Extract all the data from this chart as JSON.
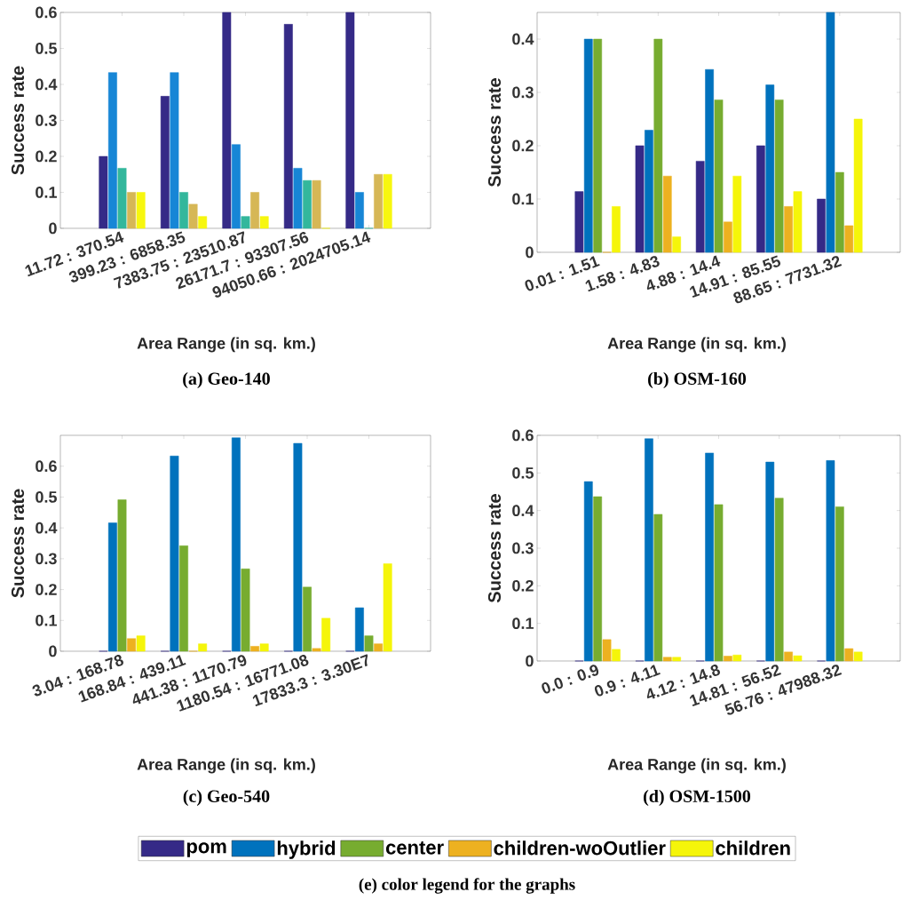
{
  "chart_data": [
    {
      "type": "bar",
      "title": "(a) Geo-140",
      "xlabel": "Area Range (in sq. km.)",
      "ylabel": "Success rate",
      "categories": [
        "11.72 : 370.54",
        "399.23 : 6858.35",
        "7383.75 : 23510.87",
        "26171.7 : 93307.56",
        "94050.66 : 2024705.14"
      ],
      "ylim": [
        0,
        0.6
      ],
      "yticks": [
        0,
        0.1,
        0.2,
        0.3,
        0.4,
        0.5,
        0.6
      ],
      "series": [
        {
          "color": "#352a87",
          "values": [
            0.2,
            0.367,
            0.6,
            0.567,
            0.6
          ]
        },
        {
          "color": "#1786d6",
          "values": [
            0.433,
            0.433,
            0.233,
            0.167,
            0.1
          ]
        },
        {
          "color": "#33b79c",
          "values": [
            0.167,
            0.1,
            0.033,
            0.133,
            0
          ]
        },
        {
          "color": "#d6b756",
          "values": [
            0.1,
            0.067,
            0.1,
            0.133,
            0.15
          ]
        },
        {
          "color": "#f7f70f",
          "values": [
            0.1,
            0.033,
            0.033,
            0,
            0.15
          ]
        }
      ]
    },
    {
      "type": "bar",
      "title": "(b) OSM-160",
      "xlabel": "Area Range (in sq. km.)",
      "ylabel": "Success rate",
      "categories": [
        "0.01 : 1.51",
        "1.58 : 4.83",
        "4.88 : 14.4",
        "14.91 : 85.55",
        "88.65 : 7731.32"
      ],
      "ylim": [
        0,
        0.45
      ],
      "yticks": [
        0,
        0.1,
        0.2,
        0.3,
        0.4
      ],
      "series": [
        {
          "color": "#352a87",
          "values": [
            0.114,
            0.2,
            0.171,
            0.2,
            0.1
          ]
        },
        {
          "color": "#0072bd",
          "values": [
            0.4,
            0.229,
            0.343,
            0.314,
            0.45
          ]
        },
        {
          "color": "#77ac30",
          "values": [
            0.4,
            0.4,
            0.286,
            0.286,
            0.15
          ]
        },
        {
          "color": "#edb120",
          "values": [
            0,
            0.143,
            0.057,
            0.086,
            0.05
          ]
        },
        {
          "color": "#f5f50a",
          "values": [
            0.086,
            0.029,
            0.143,
            0.114,
            0.25
          ]
        }
      ]
    },
    {
      "type": "bar",
      "title": "(c) Geo-540",
      "xlabel": "Area Range (in sq. km.)",
      "ylabel": "Success rate",
      "categories": [
        "3.04 : 168.78",
        "168.84 : 439.11",
        "441.38 : 1170.79",
        "1180.54 : 16771.08",
        "17833.3 : 3.30E7"
      ],
      "ylim": [
        0,
        0.7
      ],
      "yticks": [
        0,
        0.1,
        0.2,
        0.3,
        0.4,
        0.5,
        0.6
      ],
      "series": [
        {
          "color": "#352a87",
          "values": [
            0,
            0,
            0,
            0,
            0
          ]
        },
        {
          "color": "#0072bd",
          "values": [
            0.416,
            0.633,
            0.692,
            0.674,
            0.141
          ]
        },
        {
          "color": "#77ac30",
          "values": [
            0.491,
            0.342,
            0.267,
            0.208,
            0.05
          ]
        },
        {
          "color": "#edb120",
          "values": [
            0.041,
            0,
            0.016,
            0.009,
            0.024
          ]
        },
        {
          "color": "#f5f50a",
          "values": [
            0.05,
            0.024,
            0.024,
            0.107,
            0.284
          ]
        }
      ]
    },
    {
      "type": "bar",
      "title": "(d) OSM-1500",
      "xlabel": "Area Range (in sq. km.)",
      "ylabel": "Success rate",
      "categories": [
        "0.0 : 0.9",
        "0.9 : 4.11",
        "4.12 : 14.8",
        "14.81 : 56.52",
        "56.76 : 47988.32"
      ],
      "ylim": [
        0,
        0.6
      ],
      "yticks": [
        0,
        0.1,
        0.2,
        0.3,
        0.4,
        0.5,
        0.6
      ],
      "legend": "bottom",
      "annotations": [
        "(e) color legend for the graphs"
      ],
      "series": [
        {
          "name": "pom",
          "color": "#352a87",
          "values": [
            0,
            0,
            0,
            0,
            0
          ]
        },
        {
          "name": "hybrid",
          "color": "#0072bd",
          "values": [
            0.477,
            0.591,
            0.553,
            0.529,
            0.533
          ]
        },
        {
          "name": "center",
          "color": "#77ac30",
          "values": [
            0.437,
            0.39,
            0.416,
            0.433,
            0.41
          ]
        },
        {
          "name": "children-woOutlier",
          "color": "#edb120",
          "values": [
            0.057,
            0.01,
            0.013,
            0.024,
            0.033
          ]
        },
        {
          "name": "children",
          "color": "#f5f50a",
          "values": [
            0.031,
            0.01,
            0.016,
            0.014,
            0.024
          ]
        }
      ]
    }
  ]
}
